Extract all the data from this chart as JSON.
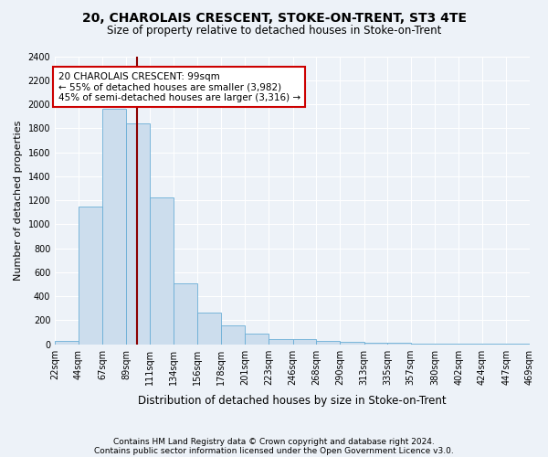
{
  "title1": "20, CHAROLAIS CRESCENT, STOKE-ON-TRENT, ST3 4TE",
  "title2": "Size of property relative to detached houses in Stoke-on-Trent",
  "xlabel": "Distribution of detached houses by size in Stoke-on-Trent",
  "ylabel": "Number of detached properties",
  "footnote1": "Contains HM Land Registry data © Crown copyright and database right 2024.",
  "footnote2": "Contains public sector information licensed under the Open Government Licence v3.0.",
  "annotation_line1": "20 CHAROLAIS CRESCENT: 99sqm",
  "annotation_line2": "← 55% of detached houses are smaller (3,982)",
  "annotation_line3": "45% of semi-detached houses are larger (3,316) →",
  "property_size": 99,
  "bar_color": "#ccdded",
  "bar_edge_color": "#6aaed6",
  "vline_color": "#8b0000",
  "annotation_box_color": "#ffffff",
  "annotation_box_edge": "#cc0000",
  "background_color": "#edf2f8",
  "bins": [
    22,
    44,
    67,
    89,
    111,
    134,
    156,
    178,
    201,
    223,
    246,
    268,
    290,
    313,
    335,
    357,
    380,
    402,
    424,
    447,
    469
  ],
  "bin_labels": [
    "22sqm",
    "44sqm",
    "67sqm",
    "89sqm",
    "111sqm",
    "134sqm",
    "156sqm",
    "178sqm",
    "201sqm",
    "223sqm",
    "246sqm",
    "268sqm",
    "290sqm",
    "313sqm",
    "335sqm",
    "357sqm",
    "380sqm",
    "402sqm",
    "424sqm",
    "447sqm",
    "469sqm"
  ],
  "values": [
    30,
    1150,
    1960,
    1840,
    1220,
    510,
    265,
    155,
    85,
    45,
    40,
    25,
    20,
    15,
    10,
    8,
    5,
    5,
    4,
    3,
    20
  ],
  "ylim": [
    0,
    2400
  ],
  "yticks": [
    0,
    200,
    400,
    600,
    800,
    1000,
    1200,
    1400,
    1600,
    1800,
    2000,
    2200,
    2400
  ]
}
